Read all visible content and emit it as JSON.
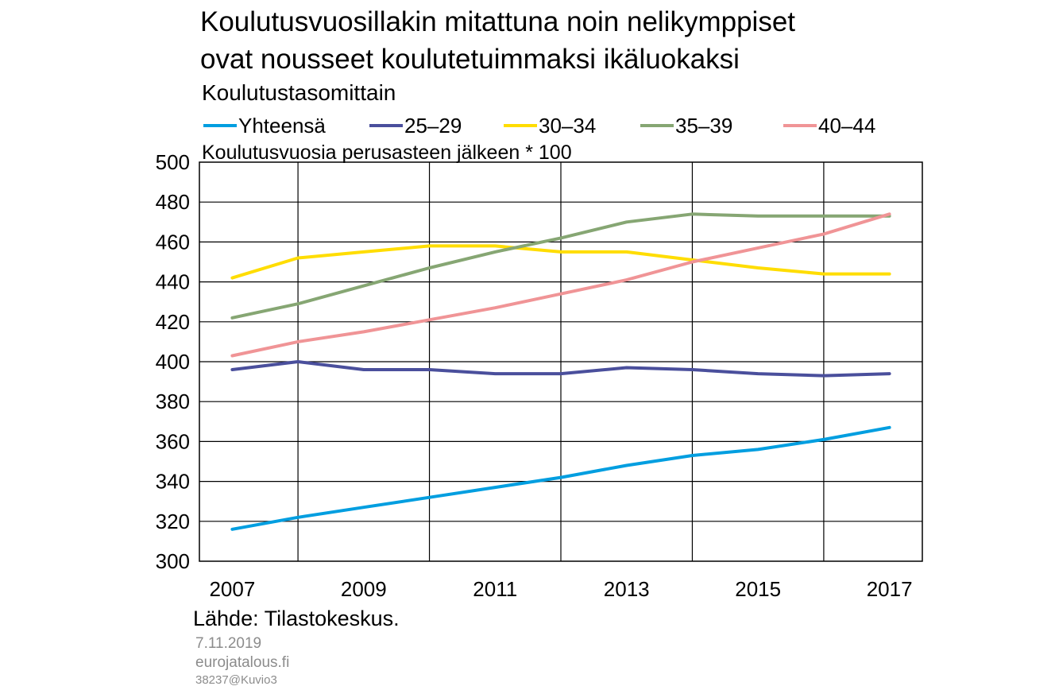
{
  "title_lines": [
    "Koulutusvuosillakin mitattuna noin nelikymppiset",
    "ovat nousseet koulutetuimmaksi ikäluokaksi"
  ],
  "subtitle": "Koulutustasomittain",
  "footer": {
    "source": "Lähde: Tilastokeskus.",
    "date": "7.11.2019",
    "site": "eurojatalous.fi",
    "code": "38237@Kuvio3"
  },
  "chart_data": {
    "type": "line",
    "ylabel": "Koulutusvuosia perusasteen jälkeen * 100",
    "ylim": [
      300,
      500
    ],
    "yticks": [
      300,
      320,
      340,
      360,
      380,
      400,
      420,
      440,
      460,
      480,
      500
    ],
    "xlim": [
      2006.5,
      2017.5
    ],
    "xtick_labels": [
      "2007",
      "2009",
      "2011",
      "2013",
      "2015",
      "2017"
    ],
    "xtick_values": [
      2007,
      2009,
      2011,
      2013,
      2015,
      2017
    ],
    "vgrid": [
      2008,
      2010,
      2012,
      2014,
      2016
    ],
    "grid": true,
    "legend_position": "top",
    "x": [
      2007,
      2008,
      2009,
      2010,
      2011,
      2012,
      2013,
      2014,
      2015,
      2016,
      2017
    ],
    "series": [
      {
        "name": "Yhteensä",
        "color": "#009ee0",
        "values": [
          316,
          322,
          327,
          332,
          337,
          342,
          348,
          353,
          356,
          361,
          367
        ]
      },
      {
        "name": "25–29",
        "color": "#4a4f9c",
        "values": [
          396,
          400,
          396,
          396,
          394,
          394,
          397,
          396,
          394,
          393,
          394
        ]
      },
      {
        "name": "30–34",
        "color": "#ffdd00",
        "values": [
          442,
          452,
          455,
          458,
          458,
          455,
          455,
          451,
          447,
          444,
          444
        ]
      },
      {
        "name": "35–39",
        "color": "#86a673",
        "values": [
          422,
          429,
          438,
          447,
          455,
          462,
          470,
          474,
          473,
          473,
          473
        ]
      },
      {
        "name": "40–44",
        "color": "#f09496",
        "values": [
          403,
          410,
          415,
          421,
          427,
          434,
          441,
          450,
          457,
          464,
          474
        ]
      }
    ]
  }
}
